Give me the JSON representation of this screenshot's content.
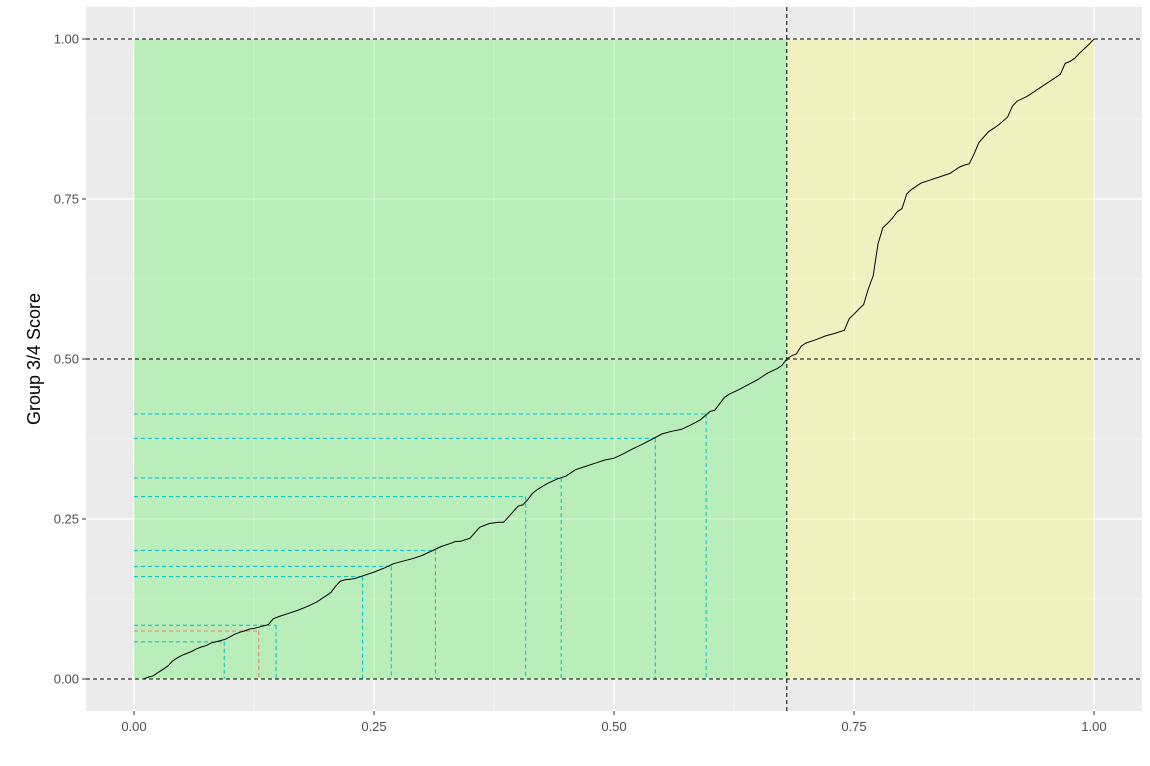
{
  "chart_data": {
    "type": "line",
    "title": "",
    "xlabel": "",
    "ylabel": "Group 3/4 Score",
    "xlim": [
      -0.125,
      1.12
    ],
    "ylim": [
      -0.05,
      1.05
    ],
    "x_ticks": [
      "0.00",
      "0.25",
      "0.50",
      "0.75",
      "1.00"
    ],
    "y_ticks": [
      "0.00",
      "0.25",
      "0.50",
      "0.75",
      "1.00"
    ],
    "grid": true,
    "colors": {
      "panel": "#ebebeb",
      "grid_major": "#ffffff",
      "green_region": "#90ee90",
      "yellow_region": "#f5f5a3",
      "curve": "#000000",
      "ref_lines": "#000000",
      "teal_lines": "#00bfc4",
      "red_line": "#f8766d"
    },
    "regions": [
      {
        "x": [
          0,
          0.68
        ],
        "y": [
          0,
          1
        ],
        "fill": "green"
      },
      {
        "x": [
          0.68,
          1.0
        ],
        "y": [
          0,
          1
        ],
        "fill": "yellow"
      }
    ],
    "reference_lines": {
      "vertical_x": [
        0.68
      ],
      "horizontal_y": [
        0,
        0.5,
        1.0
      ]
    },
    "series": [
      {
        "x": [
          0.01,
          0.015,
          0.02,
          0.025,
          0.03,
          0.035,
          0.04,
          0.045,
          0.05,
          0.055,
          0.06,
          0.065,
          0.07,
          0.075,
          0.08,
          0.085,
          0.09,
          0.095,
          0.1,
          0.105,
          0.11,
          0.115,
          0.12,
          0.125,
          0.13,
          0.135,
          0.14,
          0.145,
          0.15,
          0.16,
          0.17,
          0.18,
          0.19,
          0.2,
          0.205,
          0.21,
          0.215,
          0.22,
          0.225,
          0.23,
          0.24,
          0.25,
          0.26,
          0.27,
          0.28,
          0.29,
          0.3,
          0.31,
          0.32,
          0.33,
          0.335,
          0.34,
          0.35,
          0.36,
          0.37,
          0.38,
          0.385,
          0.39,
          0.4,
          0.405,
          0.41,
          0.415,
          0.42,
          0.43,
          0.44,
          0.45,
          0.46,
          0.47,
          0.48,
          0.49,
          0.5,
          0.51,
          0.52,
          0.53,
          0.54,
          0.55,
          0.56,
          0.57,
          0.58,
          0.59,
          0.6,
          0.605,
          0.61,
          0.615,
          0.62,
          0.63,
          0.64,
          0.65,
          0.66,
          0.67,
          0.675,
          0.68,
          0.685,
          0.69,
          0.695,
          0.7,
          0.71,
          0.72,
          0.73,
          0.74,
          0.745,
          0.75,
          0.755,
          0.76,
          0.765,
          0.77,
          0.775,
          0.78,
          0.785,
          0.79,
          0.795,
          0.8,
          0.805,
          0.81,
          0.82,
          0.83,
          0.84,
          0.85,
          0.86,
          0.865,
          0.87,
          0.875,
          0.88,
          0.89,
          0.9,
          0.91,
          0.915,
          0.92,
          0.93,
          0.94,
          0.95,
          0.96,
          0.965,
          0.97,
          0.975,
          0.98,
          0.985,
          0.99,
          0.995,
          1.0
        ],
        "values": [
          0.0,
          0.003,
          0.005,
          0.01,
          0.015,
          0.02,
          0.028,
          0.033,
          0.037,
          0.04,
          0.043,
          0.047,
          0.05,
          0.052,
          0.056,
          0.058,
          0.06,
          0.062,
          0.066,
          0.07,
          0.073,
          0.075,
          0.078,
          0.079,
          0.081,
          0.083,
          0.085,
          0.094,
          0.097,
          0.102,
          0.107,
          0.113,
          0.12,
          0.13,
          0.135,
          0.145,
          0.153,
          0.155,
          0.156,
          0.157,
          0.162,
          0.167,
          0.173,
          0.18,
          0.184,
          0.188,
          0.193,
          0.2,
          0.207,
          0.212,
          0.215,
          0.215,
          0.22,
          0.237,
          0.243,
          0.245,
          0.245,
          0.253,
          0.27,
          0.272,
          0.28,
          0.29,
          0.296,
          0.305,
          0.312,
          0.317,
          0.327,
          0.332,
          0.337,
          0.342,
          0.345,
          0.352,
          0.36,
          0.367,
          0.375,
          0.383,
          0.387,
          0.39,
          0.397,
          0.405,
          0.418,
          0.42,
          0.43,
          0.44,
          0.445,
          0.452,
          0.46,
          0.468,
          0.478,
          0.485,
          0.49,
          0.5,
          0.505,
          0.508,
          0.52,
          0.525,
          0.53,
          0.536,
          0.54,
          0.545,
          0.563,
          0.57,
          0.578,
          0.585,
          0.61,
          0.63,
          0.68,
          0.705,
          0.712,
          0.72,
          0.73,
          0.735,
          0.758,
          0.765,
          0.775,
          0.78,
          0.785,
          0.79,
          0.8,
          0.803,
          0.805,
          0.82,
          0.838,
          0.855,
          0.865,
          0.878,
          0.895,
          0.903,
          0.91,
          0.92,
          0.93,
          0.94,
          0.945,
          0.962,
          0.965,
          0.97,
          0.978,
          0.985,
          0.992,
          1.0
        ]
      }
    ],
    "teal_dropdowns": [
      {
        "x": 0.094,
        "y": 0.058
      },
      {
        "x": 0.148,
        "y": 0.084
      },
      {
        "x": 0.238,
        "y": 0.16
      },
      {
        "x": 0.268,
        "y": 0.176
      },
      {
        "x": 0.314,
        "y": 0.201
      },
      {
        "x": 0.408,
        "y": 0.285
      },
      {
        "x": 0.445,
        "y": 0.314
      },
      {
        "x": 0.543,
        "y": 0.376
      },
      {
        "x": 0.596,
        "y": 0.414
      }
    ],
    "red_dropdown": {
      "x": 0.13,
      "y": 0.075
    }
  }
}
